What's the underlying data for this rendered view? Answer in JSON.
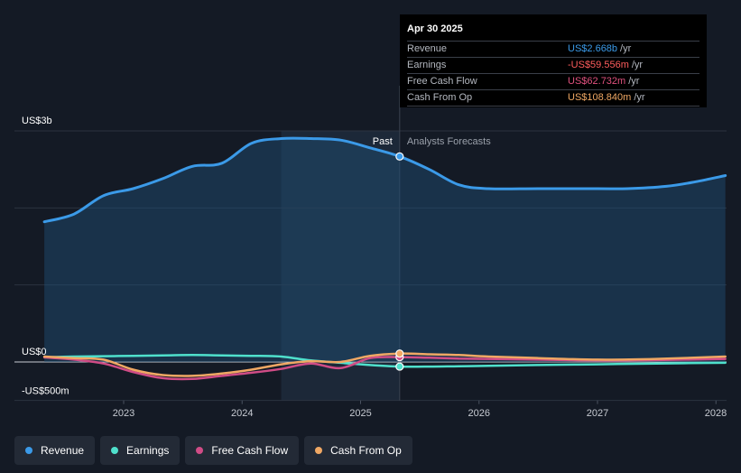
{
  "tooltip": {
    "date": "Apr 30 2025",
    "rows": [
      {
        "label": "Revenue",
        "value": "US$2.668b",
        "unit": "/yr",
        "color": "#3b9ae8"
      },
      {
        "label": "Earnings",
        "value": "-US$59.556m",
        "unit": "/yr",
        "color": "#ff5d5d"
      },
      {
        "label": "Free Cash Flow",
        "value": "US$62.732m",
        "unit": "/yr",
        "color": "#e0517e"
      },
      {
        "label": "Cash From Op",
        "value": "US$108.840m",
        "unit": "/yr",
        "color": "#f0a864"
      }
    ]
  },
  "labels": {
    "past": "Past",
    "forecast": "Analysts Forecasts"
  },
  "chart_data": {
    "type": "line",
    "ylim": [
      -500,
      3000
    ],
    "y_tick_labels": [
      "US$3b",
      "US$0",
      "-US$500m"
    ],
    "x_tick_labels": [
      "2023",
      "2024",
      "2025",
      "2026",
      "2027",
      "2028"
    ],
    "x_range": [
      2022.33,
      2028.08
    ],
    "past_end": 2025.33,
    "highlight_start": 2024.33,
    "grid": true,
    "series": [
      {
        "name": "Revenue",
        "color": "#3b9ae8",
        "filled": true,
        "x": [
          2022.33,
          2022.58,
          2022.83,
          2023.08,
          2023.33,
          2023.58,
          2023.83,
          2024.08,
          2024.33,
          2024.58,
          2024.83,
          2025.08,
          2025.33,
          2025.58,
          2025.83,
          2026.08,
          2026.5,
          2027.0,
          2027.25,
          2027.58,
          2027.83,
          2028.08
        ],
        "y": [
          1820,
          1920,
          2160,
          2250,
          2380,
          2540,
          2580,
          2840,
          2900,
          2900,
          2880,
          2780,
          2668,
          2500,
          2300,
          2250,
          2250,
          2250,
          2250,
          2280,
          2340,
          2420
        ]
      },
      {
        "name": "Earnings",
        "color": "#4fe0cc",
        "x": [
          2022.33,
          2022.58,
          2022.83,
          2023.08,
          2023.33,
          2023.58,
          2023.83,
          2024.08,
          2024.33,
          2024.58,
          2024.83,
          2025.08,
          2025.33,
          2025.58,
          2025.83,
          2026.08,
          2026.5,
          2027.0,
          2027.5,
          2028.08
        ],
        "y": [
          60,
          70,
          75,
          80,
          85,
          90,
          85,
          80,
          70,
          20,
          -10,
          -40,
          -59.556,
          -60,
          -55,
          -50,
          -40,
          -30,
          -20,
          -10
        ]
      },
      {
        "name": "Free Cash Flow",
        "color": "#d04c86",
        "x": [
          2022.33,
          2022.58,
          2022.83,
          2023.08,
          2023.33,
          2023.58,
          2023.83,
          2024.08,
          2024.33,
          2024.58,
          2024.83,
          2025.08,
          2025.33,
          2025.58,
          2025.83,
          2026.08,
          2026.5,
          2027.0,
          2027.5,
          2028.08
        ],
        "y": [
          60,
          30,
          -20,
          -130,
          -210,
          -220,
          -180,
          -140,
          -90,
          -20,
          -80,
          50,
          62.732,
          55,
          45,
          40,
          30,
          20,
          25,
          40
        ]
      },
      {
        "name": "Cash From Op",
        "color": "#f0a864",
        "x": [
          2022.33,
          2022.58,
          2022.83,
          2023.08,
          2023.33,
          2023.58,
          2023.83,
          2024.08,
          2024.33,
          2024.58,
          2024.83,
          2025.08,
          2025.33,
          2025.58,
          2025.83,
          2026.08,
          2026.5,
          2027.0,
          2027.5,
          2028.08
        ],
        "y": [
          70,
          50,
          30,
          -100,
          -170,
          -180,
          -150,
          -100,
          -30,
          10,
          0,
          80,
          108.84,
          100,
          90,
          70,
          50,
          30,
          40,
          70
        ]
      }
    ]
  }
}
